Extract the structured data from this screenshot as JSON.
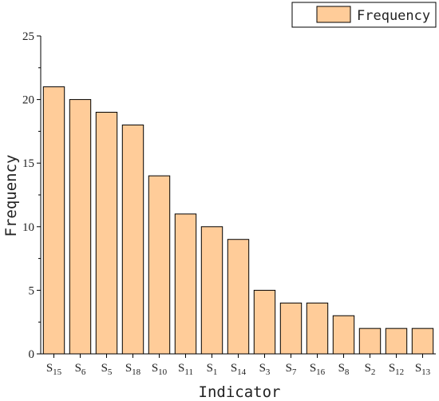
{
  "chart_data": {
    "type": "bar",
    "xlabel": "Indicator",
    "ylabel": "Frequency",
    "ylim": [
      0,
      25
    ],
    "yticks": [
      0,
      5,
      10,
      15,
      20,
      25
    ],
    "categories": [
      {
        "base": "S",
        "sub": "15"
      },
      {
        "base": "S",
        "sub": "6"
      },
      {
        "base": "S",
        "sub": "5"
      },
      {
        "base": "S",
        "sub": "18"
      },
      {
        "base": "S",
        "sub": "10"
      },
      {
        "base": "S",
        "sub": "11"
      },
      {
        "base": "S",
        "sub": "1"
      },
      {
        "base": "S",
        "sub": "14"
      },
      {
        "base": "S",
        "sub": "3"
      },
      {
        "base": "S",
        "sub": "7"
      },
      {
        "base": "S",
        "sub": "16"
      },
      {
        "base": "S",
        "sub": "8"
      },
      {
        "base": "S",
        "sub": "2"
      },
      {
        "base": "S",
        "sub": "12"
      },
      {
        "base": "S",
        "sub": "13"
      }
    ],
    "series": [
      {
        "name": "Frequency",
        "values": [
          21,
          20,
          19,
          18,
          14,
          11,
          10,
          9,
          5,
          4,
          4,
          3,
          2,
          2,
          2
        ],
        "color": "#FFCC99",
        "stroke": "#000000"
      }
    ],
    "legend": "top-right",
    "grid": false
  }
}
